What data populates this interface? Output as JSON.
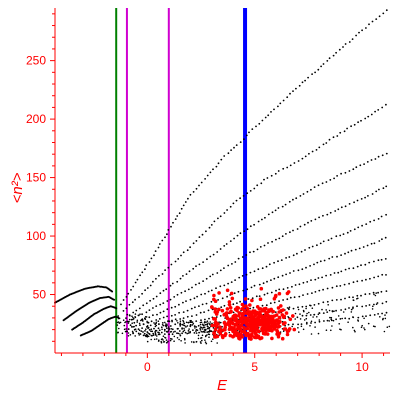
{
  "chart_data": {
    "type": "scatter",
    "xlabel": "E",
    "ylabel": "<n²>",
    "xlim": [
      -4.3,
      11.3
    ],
    "ylim": [
      0,
      295
    ],
    "x_ticks": [
      "0",
      "5",
      "10"
    ],
    "y_ticks": [
      "50",
      "100",
      "150",
      "200",
      "250"
    ],
    "x_tick_values": [
      0,
      5,
      10
    ],
    "y_tick_values": [
      50,
      100,
      150,
      200,
      250
    ],
    "grid": false,
    "colors": {
      "axis": "#ff0000",
      "points": "#000000",
      "highlight_points": "#ff0000",
      "green_line": "#008000",
      "magenta_line": "#d000d0",
      "blue_line": "#0000ff"
    },
    "vertical_lines": [
      {
        "x": -1.45,
        "color": "#008000"
      },
      {
        "x": -0.95,
        "color": "#d000d0"
      },
      {
        "x": 1.0,
        "color": "#d000d0"
      },
      {
        "x": 4.55,
        "color": "#0000ff"
      }
    ],
    "branches": [
      {
        "x": [
          -1.2,
          0.5,
          2.0,
          3.6,
          5.2,
          6.8,
          8.5,
          10.0,
          11.3
        ],
        "y": [
          42,
          90,
          135,
          168,
          196,
          224,
          252,
          276,
          295
        ]
      },
      {
        "x": [
          -1.1,
          0.7,
          2.3,
          4.0,
          5.6,
          7.2,
          9.0,
          10.6,
          11.3
        ],
        "y": [
          36,
          68,
          96,
          128,
          150,
          166,
          188,
          206,
          214
        ]
      },
      {
        "x": [
          -1.0,
          0.9,
          2.6,
          4.2,
          5.8,
          7.6,
          9.4,
          11.3
        ],
        "y": [
          30,
          55,
          78,
          100,
          120,
          140,
          156,
          172
        ]
      },
      {
        "x": [
          -0.9,
          1.1,
          2.9,
          4.6,
          6.3,
          8.0,
          9.8,
          11.3
        ],
        "y": [
          27,
          46,
          65,
          84,
          100,
          116,
          130,
          144
        ]
      },
      {
        "x": [
          -0.8,
          1.3,
          3.2,
          5.0,
          6.8,
          8.6,
          10.2,
          11.3
        ],
        "y": [
          24,
          40,
          55,
          70,
          84,
          98,
          110,
          120
        ]
      },
      {
        "x": [
          -0.7,
          1.5,
          3.5,
          5.4,
          7.2,
          9.0,
          10.6,
          11.3
        ],
        "y": [
          22,
          34,
          47,
          60,
          72,
          84,
          94,
          100
        ]
      },
      {
        "x": [
          -0.6,
          1.7,
          3.8,
          5.8,
          7.8,
          9.6,
          11.3
        ],
        "y": [
          20,
          30,
          41,
          52,
          63,
          73,
          82
        ]
      },
      {
        "x": [
          -0.5,
          1.9,
          4.2,
          6.3,
          8.4,
          10.2,
          11.3
        ],
        "y": [
          18,
          26,
          35,
          45,
          55,
          63,
          68
        ]
      },
      {
        "x": [
          -0.4,
          2.2,
          4.6,
          6.8,
          9.0,
          11.3
        ],
        "y": [
          17,
          23,
          30,
          38,
          46,
          54
        ]
      },
      {
        "x": [
          -0.3,
          2.5,
          5.0,
          7.4,
          9.6,
          11.3
        ],
        "y": [
          16,
          20,
          26,
          32,
          39,
          44
        ]
      },
      {
        "x": [
          -0.2,
          2.8,
          5.6,
          8.2,
          10.4,
          11.3
        ],
        "y": [
          15,
          18,
          22,
          27,
          32,
          35
        ]
      }
    ],
    "left_arcs": [
      {
        "x": [
          -4.3,
          -3.6,
          -2.9,
          -2.3,
          -1.9,
          -1.6
        ],
        "y": [
          43,
          50,
          55,
          57,
          56,
          52
        ]
      },
      {
        "x": [
          -3.9,
          -3.3,
          -2.7,
          -2.2,
          -1.8,
          -1.5
        ],
        "y": [
          28,
          36,
          43,
          47,
          48,
          45
        ]
      },
      {
        "x": [
          -3.5,
          -3.0,
          -2.5,
          -2.0,
          -1.7,
          -1.4
        ],
        "y": [
          20,
          26,
          33,
          38,
          40,
          38
        ]
      },
      {
        "x": [
          -3.1,
          -2.6,
          -2.2,
          -1.8,
          -1.5,
          -1.3
        ],
        "y": [
          15,
          19,
          24,
          29,
          31,
          30
        ]
      }
    ],
    "red_cluster": {
      "x_range": [
        3.0,
        6.6
      ],
      "y_range": [
        12,
        58
      ],
      "dense_center": [
        5.0,
        26
      ]
    }
  }
}
